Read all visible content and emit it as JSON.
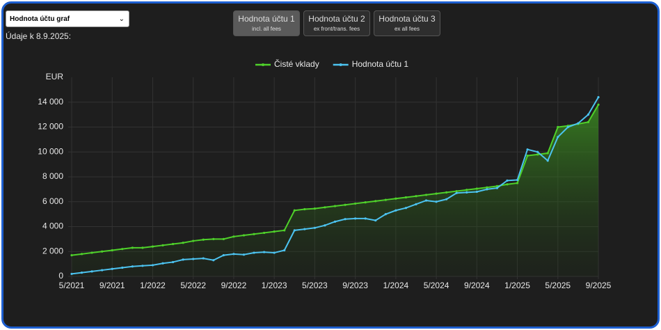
{
  "ui": {
    "select": "Hodnota účtu graf",
    "date_note": "Údaje k 8.9.2025:",
    "buttons": [
      {
        "title": "Hodnota účtu 1",
        "subtitle": "incl. all fees"
      },
      {
        "title": "Hodnota účtu 2",
        "subtitle": "ex front/trans. fees"
      },
      {
        "title": "Hodnota účtu 3",
        "subtitle": "ex all fees"
      }
    ]
  },
  "chart_data": {
    "type": "line",
    "categories": [
      "5/2021",
      null,
      null,
      null,
      "9/2021",
      null,
      null,
      null,
      "1/2022",
      null,
      null,
      null,
      "5/2022",
      null,
      null,
      null,
      "9/2022",
      null,
      null,
      null,
      "1/2023",
      null,
      null,
      null,
      "5/2023",
      null,
      null,
      null,
      "9/2023",
      null,
      null,
      null,
      "1/2024",
      null,
      null,
      null,
      "5/2024",
      null,
      null,
      null,
      "9/2024",
      null,
      null,
      null,
      "1/2025",
      null,
      null,
      null,
      "5/2025",
      null,
      null,
      null,
      "9/2025"
    ],
    "series": [
      {
        "name": "Čisté vklady",
        "color": "#4fd12a",
        "fill": true,
        "values": [
          1700,
          1800,
          1900,
          2000,
          2100,
          2200,
          2300,
          2300,
          2400,
          2500,
          2600,
          2700,
          2850,
          2950,
          3000,
          3000,
          3200,
          3300,
          3400,
          3500,
          3600,
          3700,
          5300,
          5400,
          5450,
          5550,
          5650,
          5750,
          5850,
          5950,
          6050,
          6150,
          6250,
          6350,
          6450,
          6550,
          6650,
          6750,
          6850,
          6950,
          7050,
          7150,
          7250,
          7400,
          7500,
          9700,
          9800,
          9900,
          12000,
          12100,
          12250,
          12400,
          13800
        ]
      },
      {
        "name": "Hodnota účtu 1",
        "color": "#4cc3f0",
        "fill": false,
        "values": [
          200,
          300,
          400,
          500,
          600,
          700,
          800,
          850,
          900,
          1050,
          1150,
          1350,
          1400,
          1450,
          1300,
          1700,
          1800,
          1750,
          1900,
          1950,
          1900,
          2100,
          3700,
          3800,
          3900,
          4100,
          4400,
          4600,
          4650,
          4650,
          4500,
          5000,
          5300,
          5500,
          5800,
          6100,
          6000,
          6200,
          6700,
          6750,
          6800,
          7000,
          7100,
          7700,
          7750,
          10200,
          10000,
          9300,
          11200,
          12000,
          12300,
          13000,
          14400
        ]
      }
    ],
    "ylim": [
      0,
      16000
    ],
    "yticks": [
      0,
      {
        "value": 2000,
        "label": "2 000"
      },
      {
        "value": 4000,
        "label": "4 000"
      },
      {
        "value": 6000,
        "label": "6 000"
      },
      {
        "value": 8000,
        "label": "8 000"
      },
      {
        "value": 10000,
        "label": "10 000"
      },
      {
        "value": 12000,
        "label": "12 000"
      },
      {
        "value": 14000,
        "label": "14 000"
      },
      {
        "value": 16000,
        "label": "EUR"
      }
    ],
    "grid": true
  }
}
